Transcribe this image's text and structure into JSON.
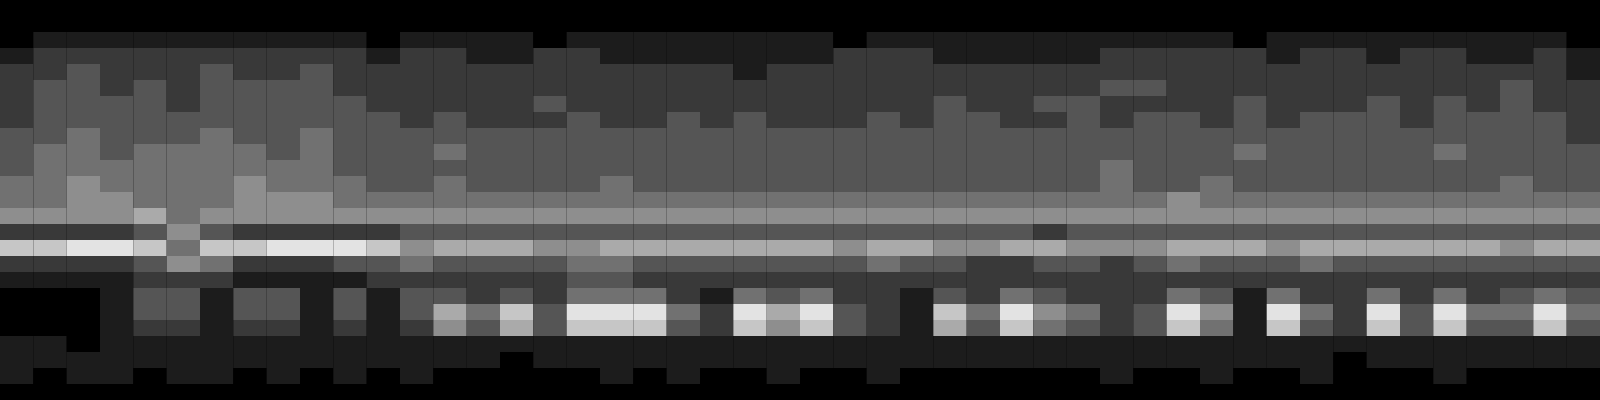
{
  "chart_data": {
    "type": "heatmap",
    "tick_labels": false,
    "zlim": [
      0,
      9
    ],
    "cells": [
      [
        0,
        0,
        0,
        0,
        0,
        0,
        0,
        0,
        0,
        0,
        0,
        0,
        0,
        0,
        0,
        0,
        0,
        0,
        0,
        0,
        0,
        0,
        0,
        0,
        0,
        0,
        0,
        0,
        0,
        0,
        0,
        0,
        0,
        0,
        0,
        0,
        0,
        0,
        0,
        0,
        0,
        0,
        0,
        0,
        0,
        0,
        0,
        0
      ],
      [
        0,
        0,
        0,
        0,
        0,
        0,
        0,
        0,
        0,
        0,
        0,
        0,
        0,
        0,
        0,
        0,
        0,
        0,
        0,
        0,
        0,
        0,
        0,
        0,
        0,
        0,
        0,
        0,
        0,
        0,
        0,
        0,
        0,
        0,
        0,
        0,
        0,
        0,
        0,
        0,
        0,
        0,
        0,
        0,
        0,
        0,
        0,
        0
      ],
      [
        0,
        1,
        1,
        1,
        1,
        1,
        1,
        1,
        1,
        1,
        1,
        0,
        1,
        1,
        1,
        1,
        0,
        1,
        1,
        1,
        1,
        1,
        1,
        1,
        1,
        0,
        1,
        1,
        1,
        1,
        1,
        1,
        1,
        1,
        1,
        1,
        1,
        0,
        1,
        1,
        1,
        1,
        1,
        1,
        1,
        1,
        1,
        0
      ],
      [
        1,
        2,
        2,
        2,
        2,
        2,
        2,
        2,
        2,
        2,
        2,
        1,
        2,
        2,
        1,
        1,
        2,
        2,
        1,
        1,
        1,
        1,
        1,
        1,
        1,
        2,
        2,
        2,
        1,
        1,
        1,
        1,
        1,
        2,
        2,
        2,
        2,
        2,
        1,
        2,
        2,
        1,
        2,
        2,
        1,
        1,
        2,
        1
      ],
      [
        2,
        2,
        3,
        2,
        2,
        2,
        3,
        2,
        2,
        3,
        2,
        2,
        2,
        2,
        2,
        2,
        2,
        2,
        2,
        2,
        2,
        2,
        1,
        2,
        2,
        2,
        2,
        2,
        2,
        2,
        2,
        2,
        2,
        2,
        2,
        2,
        2,
        2,
        2,
        2,
        2,
        2,
        2,
        2,
        2,
        2,
        2,
        1
      ],
      [
        2,
        3,
        3,
        2,
        3,
        2,
        3,
        3,
        3,
        3,
        2,
        2,
        2,
        2,
        2,
        2,
        2,
        2,
        2,
        2,
        2,
        2,
        2,
        2,
        2,
        2,
        2,
        2,
        2,
        2,
        2,
        2,
        2,
        3,
        3,
        2,
        2,
        2,
        2,
        2,
        2,
        2,
        2,
        2,
        2,
        3,
        2,
        2
      ],
      [
        2,
        3,
        3,
        3,
        3,
        2,
        3,
        3,
        3,
        3,
        3,
        2,
        2,
        2,
        2,
        2,
        3,
        2,
        2,
        2,
        2,
        2,
        2,
        2,
        2,
        2,
        2,
        2,
        3,
        2,
        2,
        3,
        3,
        2,
        2,
        2,
        2,
        3,
        2,
        2,
        2,
        3,
        2,
        3,
        2,
        3,
        2,
        2
      ],
      [
        2,
        3,
        3,
        3,
        3,
        3,
        3,
        3,
        3,
        3,
        3,
        3,
        2,
        3,
        2,
        2,
        2,
        3,
        2,
        2,
        3,
        2,
        3,
        2,
        2,
        2,
        3,
        2,
        3,
        3,
        2,
        2,
        3,
        2,
        3,
        3,
        2,
        3,
        2,
        3,
        3,
        3,
        2,
        3,
        3,
        3,
        3,
        2
      ],
      [
        3,
        3,
        4,
        3,
        3,
        3,
        4,
        3,
        3,
        4,
        3,
        3,
        3,
        3,
        3,
        3,
        3,
        3,
        3,
        3,
        3,
        3,
        3,
        3,
        3,
        3,
        3,
        3,
        3,
        3,
        3,
        3,
        3,
        3,
        3,
        3,
        3,
        3,
        3,
        3,
        3,
        3,
        3,
        3,
        3,
        3,
        3,
        2
      ],
      [
        3,
        4,
        4,
        3,
        4,
        4,
        4,
        4,
        3,
        4,
        3,
        3,
        3,
        4,
        3,
        3,
        3,
        3,
        3,
        3,
        3,
        3,
        3,
        3,
        3,
        3,
        3,
        3,
        3,
        3,
        3,
        3,
        3,
        3,
        3,
        3,
        3,
        4,
        3,
        3,
        3,
        3,
        3,
        4,
        3,
        3,
        3,
        3
      ],
      [
        3,
        4,
        4,
        4,
        4,
        4,
        4,
        4,
        4,
        4,
        3,
        3,
        3,
        3,
        3,
        3,
        3,
        3,
        3,
        3,
        3,
        3,
        3,
        3,
        3,
        3,
        3,
        3,
        3,
        3,
        3,
        3,
        3,
        4,
        3,
        3,
        3,
        3,
        3,
        3,
        3,
        3,
        3,
        3,
        3,
        3,
        3,
        3
      ],
      [
        4,
        4,
        5,
        4,
        4,
        4,
        4,
        5,
        4,
        4,
        4,
        3,
        3,
        4,
        3,
        3,
        3,
        3,
        4,
        3,
        3,
        3,
        3,
        3,
        3,
        3,
        3,
        3,
        3,
        3,
        3,
        3,
        3,
        4,
        3,
        3,
        4,
        3,
        3,
        3,
        3,
        3,
        3,
        3,
        3,
        4,
        3,
        3
      ],
      [
        4,
        4,
        5,
        5,
        4,
        4,
        4,
        5,
        5,
        5,
        4,
        4,
        4,
        4,
        4,
        4,
        4,
        4,
        4,
        4,
        4,
        4,
        4,
        4,
        4,
        4,
        4,
        4,
        4,
        4,
        4,
        4,
        4,
        4,
        4,
        5,
        4,
        4,
        4,
        4,
        4,
        4,
        4,
        4,
        4,
        4,
        4,
        4
      ],
      [
        5,
        5,
        5,
        5,
        6,
        4,
        5,
        5,
        5,
        5,
        5,
        5,
        5,
        5,
        5,
        5,
        5,
        5,
        5,
        5,
        5,
        5,
        5,
        5,
        5,
        5,
        5,
        5,
        5,
        5,
        5,
        5,
        5,
        5,
        5,
        5,
        5,
        5,
        5,
        5,
        5,
        5,
        5,
        5,
        5,
        5,
        5,
        5
      ],
      [
        2,
        2,
        2,
        2,
        3,
        5,
        3,
        2,
        2,
        2,
        2,
        2,
        3,
        3,
        3,
        3,
        3,
        3,
        3,
        3,
        3,
        3,
        3,
        3,
        3,
        3,
        3,
        3,
        3,
        3,
        3,
        2,
        3,
        3,
        3,
        3,
        3,
        3,
        3,
        3,
        3,
        3,
        3,
        3,
        3,
        3,
        3,
        3
      ],
      [
        7,
        7,
        8,
        8,
        7,
        4,
        7,
        7,
        8,
        8,
        8,
        7,
        5,
        6,
        6,
        6,
        5,
        5,
        6,
        6,
        6,
        6,
        6,
        6,
        6,
        5,
        6,
        6,
        5,
        5,
        6,
        6,
        5,
        5,
        5,
        6,
        6,
        6,
        5,
        6,
        6,
        6,
        6,
        6,
        6,
        5,
        6,
        6
      ],
      [
        2,
        2,
        2,
        2,
        3,
        5,
        4,
        2,
        2,
        2,
        3,
        3,
        4,
        3,
        3,
        3,
        3,
        4,
        4,
        3,
        3,
        3,
        3,
        3,
        3,
        3,
        4,
        3,
        3,
        2,
        2,
        3,
        3,
        2,
        3,
        4,
        3,
        3,
        3,
        4,
        3,
        3,
        3,
        3,
        3,
        3,
        3,
        3
      ],
      [
        1,
        1,
        1,
        1,
        2,
        2,
        2,
        1,
        1,
        1,
        1,
        2,
        2,
        2,
        2,
        2,
        2,
        3,
        3,
        2,
        2,
        2,
        2,
        2,
        2,
        2,
        2,
        2,
        2,
        2,
        2,
        2,
        2,
        2,
        2,
        2,
        2,
        2,
        2,
        2,
        2,
        2,
        2,
        2,
        2,
        2,
        2,
        2
      ],
      [
        0,
        0,
        0,
        1,
        3,
        3,
        1,
        3,
        3,
        1,
        3,
        1,
        3,
        3,
        2,
        3,
        2,
        4,
        4,
        4,
        2,
        1,
        4,
        3,
        4,
        2,
        2,
        1,
        3,
        2,
        4,
        3,
        2,
        2,
        2,
        4,
        3,
        1,
        4,
        2,
        2,
        4,
        2,
        4,
        2,
        3,
        4,
        3
      ],
      [
        0,
        0,
        0,
        1,
        3,
        3,
        1,
        3,
        3,
        1,
        3,
        1,
        3,
        6,
        4,
        7,
        3,
        8,
        8,
        8,
        4,
        2,
        8,
        6,
        8,
        3,
        2,
        1,
        7,
        4,
        8,
        5,
        4,
        2,
        3,
        8,
        5,
        1,
        8,
        4,
        2,
        8,
        3,
        8,
        4,
        4,
        8,
        4
      ],
      [
        0,
        0,
        0,
        1,
        2,
        2,
        1,
        2,
        2,
        1,
        2,
        1,
        2,
        5,
        3,
        6,
        3,
        7,
        7,
        7,
        3,
        2,
        7,
        5,
        7,
        3,
        2,
        1,
        6,
        3,
        7,
        4,
        3,
        2,
        3,
        7,
        4,
        1,
        7,
        3,
        2,
        7,
        3,
        7,
        3,
        3,
        7,
        3
      ],
      [
        1,
        1,
        0,
        1,
        1,
        1,
        1,
        1,
        1,
        1,
        1,
        1,
        1,
        1,
        1,
        1,
        1,
        1,
        1,
        1,
        1,
        1,
        1,
        1,
        1,
        1,
        1,
        1,
        1,
        1,
        1,
        1,
        1,
        1,
        1,
        1,
        1,
        1,
        1,
        1,
        1,
        1,
        1,
        1,
        1,
        1,
        1,
        1
      ],
      [
        1,
        1,
        1,
        1,
        1,
        1,
        1,
        1,
        1,
        1,
        1,
        1,
        1,
        1,
        1,
        0,
        1,
        1,
        1,
        1,
        1,
        1,
        1,
        1,
        1,
        1,
        1,
        1,
        1,
        1,
        1,
        1,
        1,
        1,
        1,
        1,
        1,
        1,
        1,
        1,
        0,
        1,
        1,
        1,
        1,
        1,
        1,
        1
      ],
      [
        1,
        0,
        1,
        1,
        0,
        1,
        1,
        0,
        1,
        0,
        1,
        0,
        1,
        0,
        0,
        0,
        0,
        0,
        1,
        0,
        1,
        0,
        0,
        1,
        0,
        0,
        1,
        0,
        0,
        0,
        0,
        0,
        0,
        1,
        0,
        0,
        1,
        0,
        0,
        1,
        0,
        0,
        0,
        1,
        0,
        0,
        0,
        0
      ],
      [
        0,
        0,
        0,
        0,
        0,
        0,
        0,
        0,
        0,
        0,
        0,
        0,
        0,
        0,
        0,
        0,
        0,
        0,
        0,
        0,
        0,
        0,
        0,
        0,
        0,
        0,
        0,
        0,
        0,
        0,
        0,
        0,
        0,
        0,
        0,
        0,
        0,
        0,
        0,
        0,
        0,
        0,
        0,
        0,
        0,
        0,
        0,
        0
      ]
    ]
  }
}
